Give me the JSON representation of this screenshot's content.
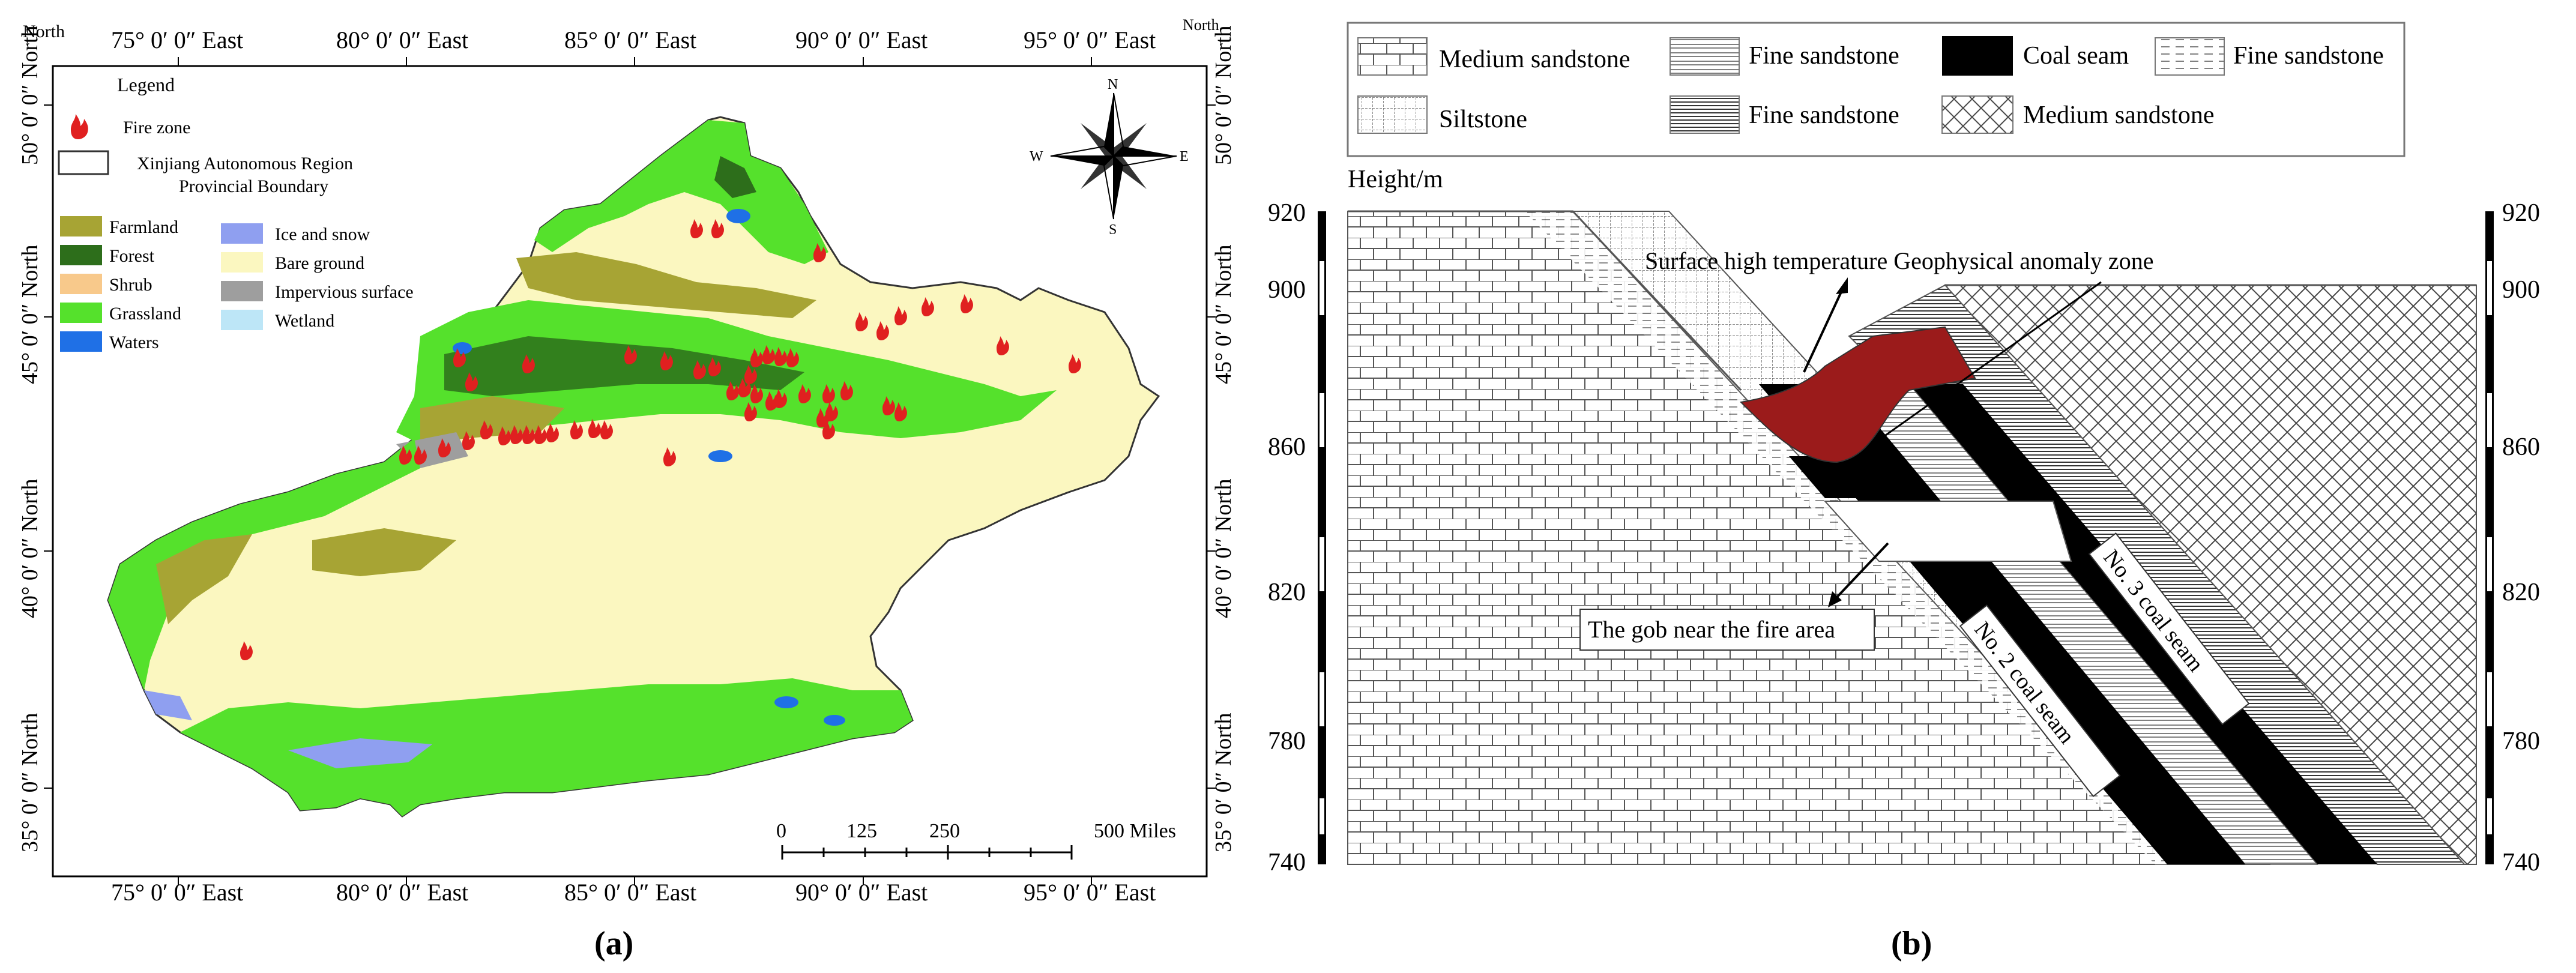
{
  "panel_a": {
    "caption": "(a)",
    "graticule": {
      "north_corner": "North",
      "top_lon": [
        "75°  0′ 0″ East",
        "80°  0′ 0″ East",
        "85°  0′ 0″ East",
        "90°  0′ 0″ East",
        "95°  0′ 0″ East"
      ],
      "bottom_lon": [
        "75°  0′ 0″ East",
        "80°  0′ 0″ East",
        "85°  0′ 0″ East",
        "90°  0′ 0″ East",
        "95°  0′ 0″ East"
      ],
      "left_lat": [
        "50°  0′ 0″ North",
        "45°  0′ 0″ North",
        "40°  0′ 0″ North",
        "35°  0′ 0″ North"
      ],
      "right_lat": [
        "50°  0′ 0″ North",
        "45°  0′ 0″ North",
        "40°  0′ 0″ North",
        "35°  0′ 0″ North"
      ]
    },
    "legend": {
      "title": "Legend",
      "fire_zone": "Fire zone",
      "boundary_line1": "Xinjiang Autonomous Region",
      "boundary_line2": "Provincial Boundary",
      "classes": [
        {
          "label": "Farmland",
          "color": "#a7a434"
        },
        {
          "label": "Forest",
          "color": "#2d6e1b"
        },
        {
          "label": "Shrub",
          "color": "#f8c98b"
        },
        {
          "label": "Grassland",
          "color": "#55e12c"
        },
        {
          "label": "Waters",
          "color": "#1f70e6"
        },
        {
          "label": "Ice and snow",
          "color": "#8f9ff0"
        },
        {
          "label": "Bare ground",
          "color": "#fbf7c0"
        },
        {
          "label": "Impervious surface",
          "color": "#9e9e9e"
        },
        {
          "label": "Wetland",
          "color": "#bde6f7"
        }
      ]
    },
    "compass": {
      "n": "N",
      "s": "S",
      "e": "E",
      "w": "W"
    },
    "scale_bar": {
      "ticks": [
        "0",
        "125",
        "250",
        "500 Miles"
      ]
    },
    "fire_marker_color": "#e02020"
  },
  "panel_b": {
    "caption": "(b)",
    "legend": [
      {
        "label": "Medium sandstone",
        "pattern": "brick"
      },
      {
        "label": "Fine sandstone",
        "pattern": "hlines"
      },
      {
        "label": "Coal seam",
        "pattern": "solid-black"
      },
      {
        "label": "Fine sandstone",
        "pattern": "dashed"
      },
      {
        "label": "Siltstone",
        "pattern": "grid"
      },
      {
        "label": "Fine sandstone",
        "pattern": "dense-lines"
      },
      {
        "label": "Medium sandstone",
        "pattern": "crosshatch"
      }
    ],
    "height_label": "Height/m",
    "axis_ticks": [
      "920",
      "900",
      "860",
      "820",
      "780",
      "740"
    ],
    "annotations": {
      "anomaly_zone": "Surface high temperature Geophysical anomaly zone",
      "gob": "The gob near the fire area",
      "seam2": "No. 2 coal seam",
      "seam3": "No. 3 coal seam"
    },
    "anomaly_color": "#9b1b1b"
  }
}
